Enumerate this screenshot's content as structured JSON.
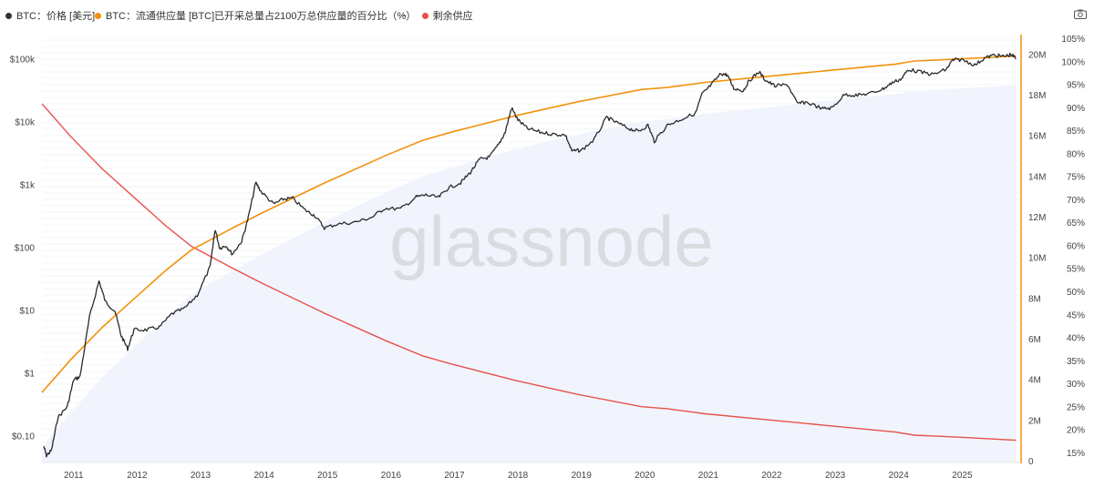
{
  "legend": [
    {
      "label": "BTC：价格 [美元]",
      "color": "#333333",
      "kind": "dot"
    },
    {
      "label": "BTC：流通供应量 [BTC]",
      "color": "#f2920b",
      "kind": "dot"
    },
    {
      "label": "已开采总量占2100万总供应量的百分比（%）",
      "color": "#555555",
      "kind": "none"
    },
    {
      "label": "剩余供应",
      "color": "#e8514b",
      "kind": "dash-dot"
    }
  ],
  "watermark": "glassnode",
  "icons": {
    "camera": "camera-icon"
  },
  "colors": {
    "price": "#2a2a2a",
    "supply": "#f2920b",
    "remaining": "#e8514b",
    "fill": "#eef2fb",
    "axis_orange": "#f2920b"
  },
  "chart_data": {
    "type": "line",
    "title": "",
    "x_ticks": [
      "2011",
      "2012",
      "2013",
      "2014",
      "2015",
      "2016",
      "2017",
      "2018",
      "2019",
      "2020",
      "2021",
      "2022",
      "2023",
      "2024",
      "2025"
    ],
    "x_range": [
      2010.55,
      2025.95
    ],
    "left_axis": {
      "scale": "log",
      "ticks": [
        "$0.10",
        "$1",
        "$10",
        "$100",
        "$1k",
        "$10k",
        "$100k"
      ],
      "range": [
        0.04,
        250000
      ]
    },
    "right_axis_supply": {
      "ticks": [
        "0",
        "2M",
        "4M",
        "6M",
        "8M",
        "10M",
        "12M",
        "14M",
        "16M",
        "18M",
        "20M"
      ],
      "range": [
        0,
        21000000
      ]
    },
    "right_axis_percent": {
      "ticks": [
        "15%",
        "20%",
        "25%",
        "30%",
        "35%",
        "40%",
        "45%",
        "50%",
        "55%",
        "60%",
        "65%",
        "70%",
        "75%",
        "80%",
        "85%",
        "90%",
        "95%",
        "100%",
        "105%"
      ],
      "range": [
        13.2,
        106
      ]
    },
    "series": [
      {
        "name": "BTC：价格 [美元]",
        "axis": "left",
        "points": [
          [
            2010.58,
            0.07
          ],
          [
            2010.62,
            0.05
          ],
          [
            2010.7,
            0.06
          ],
          [
            2010.8,
            0.2
          ],
          [
            2010.95,
            0.3
          ],
          [
            2011.05,
            0.8
          ],
          [
            2011.15,
            0.9
          ],
          [
            2011.3,
            8
          ],
          [
            2011.45,
            30
          ],
          [
            2011.55,
            14
          ],
          [
            2011.7,
            10
          ],
          [
            2011.8,
            4
          ],
          [
            2011.9,
            2.5
          ],
          [
            2012.0,
            5
          ],
          [
            2012.2,
            5
          ],
          [
            2012.4,
            5.5
          ],
          [
            2012.6,
            9
          ],
          [
            2012.8,
            11
          ],
          [
            2013.0,
            18
          ],
          [
            2013.2,
            50
          ],
          [
            2013.28,
            200
          ],
          [
            2013.35,
            100
          ],
          [
            2013.45,
            110
          ],
          [
            2013.55,
            80
          ],
          [
            2013.7,
            130
          ],
          [
            2013.8,
            300
          ],
          [
            2013.92,
            1100
          ],
          [
            2014.0,
            800
          ],
          [
            2014.2,
            500
          ],
          [
            2014.35,
            600
          ],
          [
            2014.5,
            620
          ],
          [
            2014.7,
            400
          ],
          [
            2014.85,
            330
          ],
          [
            2015.0,
            210
          ],
          [
            2015.2,
            240
          ],
          [
            2015.5,
            260
          ],
          [
            2015.75,
            310
          ],
          [
            2015.95,
            430
          ],
          [
            2016.2,
            420
          ],
          [
            2016.45,
            650
          ],
          [
            2016.6,
            700
          ],
          [
            2016.8,
            640
          ],
          [
            2016.95,
            900
          ],
          [
            2017.15,
            1100
          ],
          [
            2017.3,
            1600
          ],
          [
            2017.45,
            2600
          ],
          [
            2017.6,
            2800
          ],
          [
            2017.75,
            4500
          ],
          [
            2017.85,
            7000
          ],
          [
            2017.95,
            17000
          ],
          [
            2018.05,
            11000
          ],
          [
            2018.2,
            8000
          ],
          [
            2018.4,
            7000
          ],
          [
            2018.6,
            6500
          ],
          [
            2018.8,
            6300
          ],
          [
            2018.9,
            3500
          ],
          [
            2019.05,
            3600
          ],
          [
            2019.25,
            5300
          ],
          [
            2019.45,
            12000
          ],
          [
            2019.6,
            10000
          ],
          [
            2019.8,
            8000
          ],
          [
            2019.95,
            7200
          ],
          [
            2020.1,
            9000
          ],
          [
            2020.2,
            5000
          ],
          [
            2020.4,
            9000
          ],
          [
            2020.6,
            11000
          ],
          [
            2020.85,
            14000
          ],
          [
            2020.95,
            28000
          ],
          [
            2021.1,
            40000
          ],
          [
            2021.25,
            60000
          ],
          [
            2021.35,
            57000
          ],
          [
            2021.45,
            35000
          ],
          [
            2021.6,
            32000
          ],
          [
            2021.7,
            47000
          ],
          [
            2021.85,
            64000
          ],
          [
            2021.95,
            47000
          ],
          [
            2022.1,
            38000
          ],
          [
            2022.3,
            40000
          ],
          [
            2022.45,
            20000
          ],
          [
            2022.6,
            21000
          ],
          [
            2022.85,
            16500
          ],
          [
            2023.0,
            17000
          ],
          [
            2023.2,
            28000
          ],
          [
            2023.4,
            27000
          ],
          [
            2023.6,
            29000
          ],
          [
            2023.8,
            34000
          ],
          [
            2023.95,
            43000
          ],
          [
            2024.1,
            50000
          ],
          [
            2024.2,
            70000
          ],
          [
            2024.4,
            63000
          ],
          [
            2024.6,
            58000
          ],
          [
            2024.8,
            70000
          ],
          [
            2024.9,
            98000
          ],
          [
            2025.05,
            100000
          ],
          [
            2025.25,
            82000
          ],
          [
            2025.4,
            105000
          ],
          [
            2025.55,
            118000
          ],
          [
            2025.7,
            112000
          ],
          [
            2025.82,
            120000
          ],
          [
            2025.9,
            105000
          ]
        ]
      },
      {
        "name": "BTC：流通供应量 [BTC]",
        "axis": "right_supply",
        "points": [
          [
            2010.55,
            3400000
          ],
          [
            2011.0,
            5000000
          ],
          [
            2011.5,
            6600000
          ],
          [
            2012.0,
            8000000
          ],
          [
            2012.5,
            9400000
          ],
          [
            2012.9,
            10400000
          ],
          [
            2013.5,
            11400000
          ],
          [
            2014.0,
            12200000
          ],
          [
            2015.0,
            13700000
          ],
          [
            2016.0,
            15100000
          ],
          [
            2016.55,
            15800000
          ],
          [
            2017.0,
            16200000
          ],
          [
            2018.0,
            17000000
          ],
          [
            2019.0,
            17700000
          ],
          [
            2020.0,
            18300000
          ],
          [
            2020.4,
            18400000
          ],
          [
            2021.0,
            18650000
          ],
          [
            2022.0,
            18950000
          ],
          [
            2023.0,
            19250000
          ],
          [
            2024.0,
            19550000
          ],
          [
            2024.3,
            19700000
          ],
          [
            2025.0,
            19800000
          ],
          [
            2025.9,
            19950000
          ]
        ]
      },
      {
        "name": "已开采总量占2100万总供应量的百分比（%）",
        "axis": "right_percent",
        "fill": true,
        "points": [
          [
            2010.55,
            16.2
          ],
          [
            2011.0,
            23.8
          ],
          [
            2011.5,
            31.4
          ],
          [
            2012.0,
            38.1
          ],
          [
            2012.9,
            49.5
          ],
          [
            2013.5,
            54.3
          ],
          [
            2014.0,
            58.1
          ],
          [
            2015.0,
            65.2
          ],
          [
            2016.0,
            71.9
          ],
          [
            2016.55,
            75.2
          ],
          [
            2017.0,
            77.1
          ],
          [
            2018.0,
            81.0
          ],
          [
            2019.0,
            84.3
          ],
          [
            2020.0,
            87.1
          ],
          [
            2020.4,
            87.6
          ],
          [
            2021.0,
            88.8
          ],
          [
            2022.0,
            90.2
          ],
          [
            2023.0,
            91.7
          ],
          [
            2024.0,
            93.1
          ],
          [
            2024.3,
            93.8
          ],
          [
            2025.0,
            94.3
          ],
          [
            2025.9,
            95.0
          ]
        ]
      },
      {
        "name": "剩余供应",
        "axis": "right_supply",
        "points": [
          [
            2010.55,
            17600000
          ],
          [
            2011.0,
            16000000
          ],
          [
            2011.5,
            14400000
          ],
          [
            2012.0,
            13000000
          ],
          [
            2012.5,
            11600000
          ],
          [
            2012.9,
            10600000
          ],
          [
            2013.5,
            9600000
          ],
          [
            2014.0,
            8800000
          ],
          [
            2015.0,
            7300000
          ],
          [
            2016.0,
            5900000
          ],
          [
            2016.55,
            5200000
          ],
          [
            2017.0,
            4800000
          ],
          [
            2018.0,
            4000000
          ],
          [
            2019.0,
            3300000
          ],
          [
            2020.0,
            2700000
          ],
          [
            2020.4,
            2600000
          ],
          [
            2021.0,
            2350000
          ],
          [
            2022.0,
            2050000
          ],
          [
            2023.0,
            1750000
          ],
          [
            2024.0,
            1450000
          ],
          [
            2024.3,
            1300000
          ],
          [
            2025.0,
            1200000
          ],
          [
            2025.9,
            1050000
          ]
        ]
      }
    ]
  }
}
